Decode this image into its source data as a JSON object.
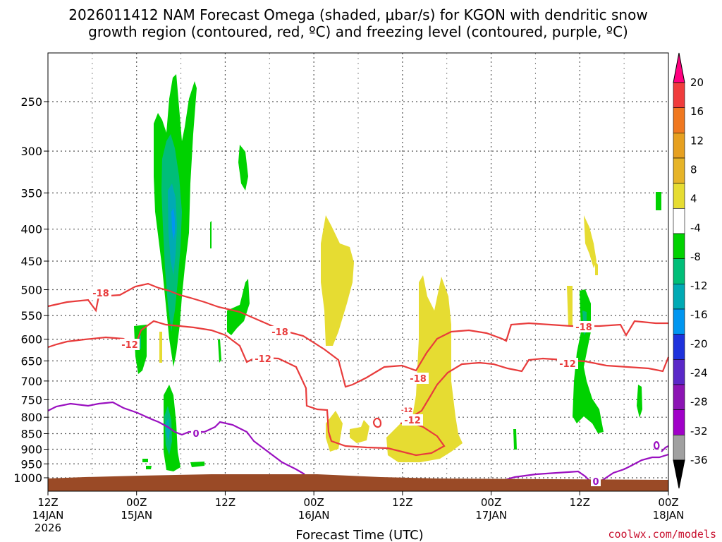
{
  "chart_data": {
    "type": "time-height cross section",
    "title_line1": "2026011412 NAM Forecast Omega (shaded, μbar/s) for KGON with dendritic snow",
    "title_line2": "growth region (contoured, red, ºC) and freezing level (contoured, purple, ºC)",
    "xlabel": "Forecast Time (UTC)",
    "ylabel": "",
    "credit": "coolwx.com/models",
    "y_ticks": [
      "250",
      "300",
      "350",
      "400",
      "450",
      "500",
      "550",
      "600",
      "650",
      "700",
      "750",
      "800",
      "850",
      "900",
      "950",
      "1000"
    ],
    "x_ticks": [
      {
        "top": "12Z",
        "mid": "14JAN",
        "bot": "2026"
      },
      {
        "top": "00Z",
        "mid": "15JAN",
        "bot": ""
      },
      {
        "top": "12Z",
        "mid": "",
        "bot": ""
      },
      {
        "top": "00Z",
        "mid": "16JAN",
        "bot": ""
      },
      {
        "top": "12Z",
        "mid": "",
        "bot": ""
      },
      {
        "top": "00Z",
        "mid": "17JAN",
        "bot": ""
      },
      {
        "top": "12Z",
        "mid": "",
        "bot": ""
      },
      {
        "top": "00Z",
        "mid": "18JAN",
        "bot": ""
      }
    ],
    "colorbar": {
      "labels": [
        "20",
        "16",
        "12",
        "8",
        "4",
        "-4",
        "-8",
        "-12",
        "-16",
        "-20",
        "-24",
        "-28",
        "-32",
        "-36"
      ],
      "colors": [
        "#ff0080",
        "#f03c3c",
        "#f07820",
        "#e6a020",
        "#e6b428",
        "#e6dc32",
        "#ffffff",
        "#00d200",
        "#00be78",
        "#00aab4",
        "#0096f0",
        "#1e32dc",
        "#5a28c8",
        "#8c14b4",
        "#a000c8",
        "#a0a0a0",
        "#000000"
      ]
    },
    "contour_labels": {
      "red": [
        "-18",
        "-12",
        "-18",
        "-12",
        "-18",
        "-12",
        "-12",
        "-18",
        "-12"
      ],
      "purple": [
        "0",
        "0"
      ]
    },
    "colors": {
      "red_contour": "#e83c3c",
      "purple_contour": "#9a10c0",
      "ground": "#9a4a26",
      "positive_omega": "#e6dc32",
      "weak_negative": "#00d200",
      "moderate_negative": "#00be78",
      "strong_negative": "#00aab4",
      "very_strong_negative": "#0096f0"
    }
  }
}
